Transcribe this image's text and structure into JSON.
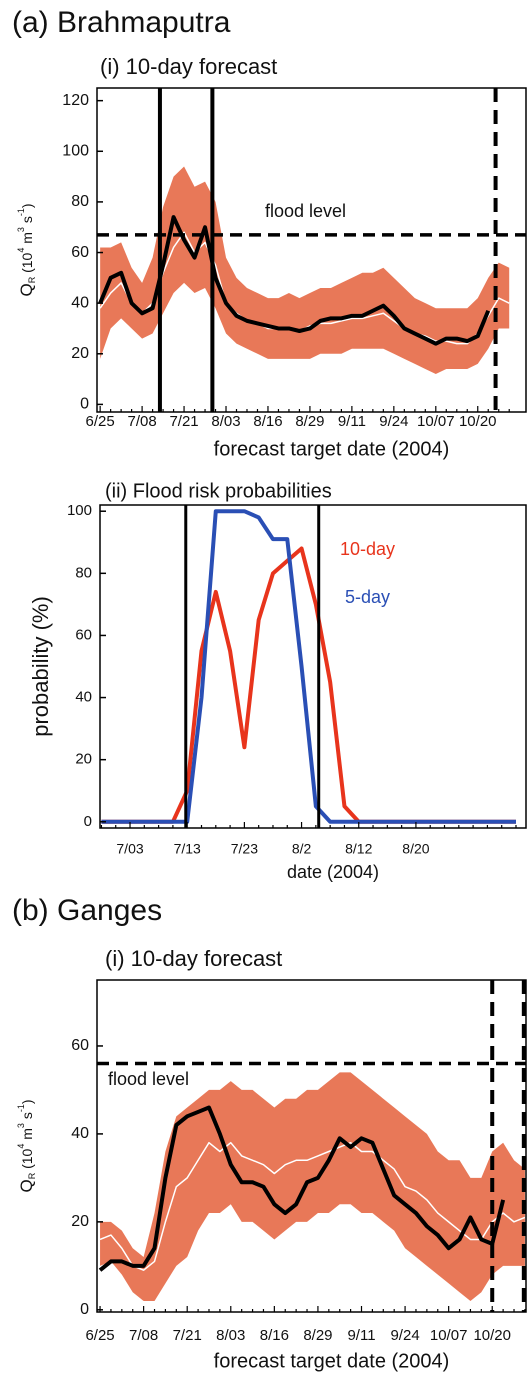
{
  "chart_data": [
    {
      "type": "line",
      "panel_title": "(a) Brahmaputra",
      "title": "(i) 10-day forecast",
      "ylabel": {
        "base": "Q",
        "sub": "R",
        "unit": [
          " (10",
          "4",
          " m",
          "3",
          " s",
          "-1",
          ")"
        ]
      },
      "xlabel": "forecast target date (2004)",
      "categories": [
        "6/25",
        null,
        null,
        null,
        "7/08",
        null,
        null,
        null,
        "7/21",
        null,
        null,
        null,
        "8/03",
        null,
        null,
        null,
        "8/16",
        null,
        null,
        null,
        "8/29",
        null,
        null,
        null,
        "9/11",
        null,
        null,
        null,
        "9/24",
        null,
        null,
        null,
        "10/07",
        null,
        null,
        null,
        "10/20",
        null,
        null,
        null
      ],
      "xlim": [
        -0.3,
        40.6
      ],
      "ylim": [
        -3,
        125
      ],
      "yticks": [
        0,
        20,
        40,
        60,
        80,
        100,
        120
      ],
      "band": {
        "color": "#e2562e",
        "lower": [
          18,
          30,
          34,
          30,
          26,
          28,
          36,
          44,
          48,
          44,
          46,
          38,
          28,
          24,
          22,
          20,
          18,
          18,
          18,
          18,
          18,
          20,
          20,
          20,
          22,
          22,
          22,
          22,
          20,
          18,
          16,
          14,
          12,
          14,
          14,
          14,
          16,
          22,
          30,
          30
        ],
        "upper": [
          62,
          62,
          64,
          54,
          48,
          58,
          78,
          90,
          94,
          86,
          88,
          80,
          58,
          50,
          46,
          44,
          42,
          42,
          44,
          42,
          44,
          46,
          46,
          48,
          50,
          52,
          52,
          54,
          50,
          46,
          42,
          40,
          38,
          38,
          38,
          38,
          42,
          50,
          56,
          54
        ]
      },
      "series": [
        {
          "color": "#ffffff",
          "values": [
            38,
            44,
            48,
            40,
            36,
            40,
            52,
            62,
            68,
            60,
            64,
            55,
            40,
            36,
            33,
            32,
            30,
            30,
            30,
            29,
            31,
            32,
            32,
            33,
            34,
            34,
            35,
            36,
            33,
            30,
            28,
            27,
            25,
            25,
            24,
            24,
            28,
            35,
            42,
            40
          ]
        },
        {
          "color": "#000000",
          "values": [
            40,
            50,
            52,
            40,
            36,
            38,
            55,
            74,
            65,
            58,
            70,
            50,
            40,
            35,
            33,
            32,
            31,
            30,
            30,
            29,
            30,
            33,
            34,
            34,
            35,
            35,
            37,
            39,
            35,
            30,
            28,
            26,
            24,
            26,
            26,
            25,
            27,
            37,
            null,
            null
          ]
        }
      ],
      "flood_level": {
        "value": 67,
        "label": "flood level"
      },
      "markers": [
        {
          "x": 5.7,
          "style": "solid"
        },
        {
          "x": 10.7,
          "style": "solid"
        },
        {
          "x": 37.7,
          "style": "dashed"
        }
      ]
    },
    {
      "type": "line",
      "title": "(ii) Flood risk probabilities",
      "ylabel": "probability (%)",
      "xlabel": "date (2004)",
      "categories": [
        null,
        null,
        "7/03",
        null,
        null,
        null,
        "7/13",
        null,
        null,
        null,
        "7/23",
        null,
        null,
        null,
        "8/2",
        null,
        null,
        null,
        "8/12",
        null,
        null,
        null,
        "8/20",
        null,
        null,
        null,
        null,
        null,
        null,
        null
      ],
      "xlim": [
        -0.1,
        29.7
      ],
      "ylim": [
        -2,
        102
      ],
      "yticks": [
        0,
        20,
        40,
        60,
        80,
        100
      ],
      "series": [
        {
          "name": "10-day",
          "color": "#e8341c",
          "values": [
            0,
            0,
            0,
            0,
            0,
            0,
            10,
            55,
            74,
            55,
            24,
            65,
            80,
            84,
            88,
            70,
            45,
            5,
            0,
            0,
            0,
            0,
            0,
            0,
            0,
            0,
            0,
            0,
            0,
            0
          ]
        },
        {
          "name": "5-day",
          "color": "#2a4fb5",
          "values": [
            0,
            0,
            0,
            0,
            0,
            0,
            0,
            40,
            100,
            100,
            100,
            98,
            91,
            91,
            50,
            5,
            0,
            0,
            0,
            0,
            0,
            0,
            0,
            0,
            0,
            0,
            0,
            0,
            0,
            0
          ]
        }
      ],
      "markers": [
        {
          "x": 5.9,
          "style": "solid"
        },
        {
          "x": 15.2,
          "style": "solid"
        }
      ]
    },
    {
      "type": "line",
      "panel_title": "(b) Ganges",
      "title": "(i) 10-day forecast",
      "ylabel": {
        "base": "Q",
        "sub": "R",
        "unit": [
          " (10",
          "4",
          " m",
          "3",
          " s",
          "-1",
          ")"
        ]
      },
      "xlabel": "forecast target date (2004)",
      "categories": [
        "6/25",
        null,
        null,
        null,
        "7/08",
        null,
        null,
        null,
        "7/21",
        null,
        null,
        null,
        "8/03",
        null,
        null,
        null,
        "8/16",
        null,
        null,
        null,
        "8/29",
        null,
        null,
        null,
        "9/11",
        null,
        null,
        null,
        "9/24",
        null,
        null,
        null,
        "10/07",
        null,
        null,
        null,
        "10/20",
        null,
        null,
        null
      ],
      "xlim": [
        -0.28,
        39.1
      ],
      "ylim": [
        -0.5,
        75
      ],
      "yticks": [
        0,
        20,
        40,
        60
      ],
      "band": {
        "color": "#e2562e",
        "lower": [
          10,
          11,
          8,
          4,
          2,
          2,
          6,
          10,
          12,
          18,
          22,
          22,
          24,
          20,
          20,
          18,
          16,
          18,
          20,
          20,
          22,
          22,
          24,
          24,
          22,
          22,
          20,
          18,
          14,
          12,
          10,
          8,
          6,
          4,
          2,
          4,
          8,
          10,
          10,
          10
        ],
        "upper": [
          20,
          20,
          18,
          14,
          12,
          22,
          36,
          44,
          46,
          48,
          50,
          50,
          52,
          50,
          50,
          48,
          46,
          48,
          48,
          50,
          50,
          52,
          54,
          54,
          52,
          50,
          48,
          46,
          44,
          42,
          40,
          36,
          34,
          34,
          30,
          30,
          36,
          38,
          34,
          32
        ]
      },
      "series": [
        {
          "color": "#ffffff",
          "values": [
            16,
            17,
            14,
            10,
            9,
            11,
            20,
            28,
            30,
            34,
            38,
            36,
            38,
            35,
            34,
            33,
            31,
            33,
            34,
            34,
            35,
            36,
            37,
            38,
            36,
            36,
            34,
            32,
            28,
            27,
            25,
            22,
            20,
            18,
            16,
            16,
            20,
            22,
            20,
            21
          ]
        },
        {
          "color": "#000000",
          "values": [
            9,
            11,
            11,
            10,
            10,
            14,
            30,
            42,
            44,
            45,
            46,
            40,
            33,
            29,
            29,
            28,
            24,
            22,
            24,
            29,
            30,
            34,
            39,
            37,
            39,
            38,
            32,
            26,
            24,
            22,
            19,
            17,
            14,
            16,
            21,
            16,
            15,
            25,
            null,
            null
          ]
        }
      ],
      "flood_level": {
        "value": 56,
        "label": "flood level"
      },
      "markers": [
        {
          "x": 36,
          "style": "dashed"
        },
        {
          "x": 38.9,
          "style": "dashed"
        }
      ]
    }
  ]
}
